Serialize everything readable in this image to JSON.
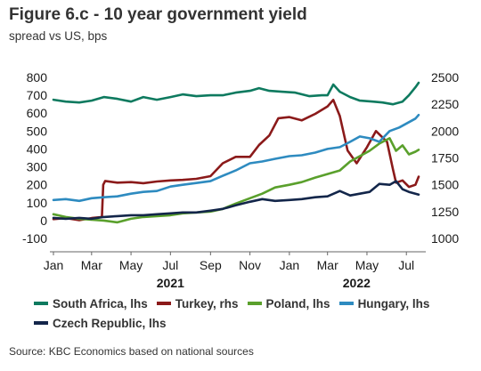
{
  "header": {
    "title": "Figure 6.c - 10 year government yield",
    "subtitle": "spread vs US, bps"
  },
  "source": "Source: KBC Economics based on national sources",
  "chart_data": {
    "type": "line",
    "title": "Figure 6.c - 10 year government yield",
    "subtitle": "spread vs US, bps",
    "x_range": [
      "2021-01-01",
      "2022-07-31"
    ],
    "x_ticks": [
      {
        "date": "2021-01-01",
        "label": "Jan"
      },
      {
        "date": "2021-03-01",
        "label": "Mar"
      },
      {
        "date": "2021-05-01",
        "label": "May"
      },
      {
        "date": "2021-07-01",
        "label": "Jul"
      },
      {
        "date": "2021-09-01",
        "label": "Sep"
      },
      {
        "date": "2021-11-01",
        "label": "Nov"
      },
      {
        "date": "2022-01-01",
        "label": "Jan"
      },
      {
        "date": "2022-03-01",
        "label": "Mar"
      },
      {
        "date": "2022-05-01",
        "label": "May"
      },
      {
        "date": "2022-07-01",
        "label": "Jul"
      }
    ],
    "year_labels": [
      {
        "date": "2021-07-01",
        "label": "2021"
      },
      {
        "date": "2022-04-15",
        "label": "2022"
      }
    ],
    "y_left": {
      "min": -100,
      "max": 800,
      "step": 100,
      "labels": [
        "-100",
        "0",
        "100",
        "200",
        "300",
        "400",
        "500",
        "600",
        "700",
        "800"
      ]
    },
    "y_right": {
      "min": 1000,
      "max": 2500,
      "step": 250,
      "labels": [
        "1000",
        "1250",
        "1500",
        "1750",
        "2000",
        "2250",
        "2500"
      ]
    },
    "grid": false,
    "legend_position": "bottom",
    "series": [
      {
        "name": "South Africa, lhs",
        "axis": "left",
        "color": "#0e7a5f",
        "points": [
          [
            "2021-01-01",
            675
          ],
          [
            "2021-01-20",
            665
          ],
          [
            "2021-02-10",
            660
          ],
          [
            "2021-03-01",
            670
          ],
          [
            "2021-03-20",
            690
          ],
          [
            "2021-04-10",
            680
          ],
          [
            "2021-05-01",
            665
          ],
          [
            "2021-05-20",
            690
          ],
          [
            "2021-06-10",
            675
          ],
          [
            "2021-07-01",
            690
          ],
          [
            "2021-07-20",
            705
          ],
          [
            "2021-08-10",
            695
          ],
          [
            "2021-09-01",
            700
          ],
          [
            "2021-09-20",
            700
          ],
          [
            "2021-10-10",
            715
          ],
          [
            "2021-11-01",
            725
          ],
          [
            "2021-11-15",
            740
          ],
          [
            "2021-12-01",
            725
          ],
          [
            "2021-12-20",
            720
          ],
          [
            "2022-01-10",
            715
          ],
          [
            "2022-02-01",
            695
          ],
          [
            "2022-02-20",
            700
          ],
          [
            "2022-03-01",
            700
          ],
          [
            "2022-03-10",
            760
          ],
          [
            "2022-03-20",
            720
          ],
          [
            "2022-04-05",
            690
          ],
          [
            "2022-04-20",
            670
          ],
          [
            "2022-05-10",
            665
          ],
          [
            "2022-05-25",
            660
          ],
          [
            "2022-06-10",
            650
          ],
          [
            "2022-06-25",
            665
          ],
          [
            "2022-07-05",
            700
          ],
          [
            "2022-07-15",
            745
          ],
          [
            "2022-07-20",
            770
          ]
        ]
      },
      {
        "name": "Turkey, rhs",
        "axis": "right",
        "color": "#8b1a1a",
        "points": [
          [
            "2021-01-01",
            1180
          ],
          [
            "2021-01-20",
            1190
          ],
          [
            "2021-02-10",
            1170
          ],
          [
            "2021-03-01",
            1190
          ],
          [
            "2021-03-17",
            1200
          ],
          [
            "2021-03-19",
            1500
          ],
          [
            "2021-03-22",
            1535
          ],
          [
            "2021-04-10",
            1520
          ],
          [
            "2021-05-01",
            1525
          ],
          [
            "2021-05-20",
            1515
          ],
          [
            "2021-06-10",
            1530
          ],
          [
            "2021-07-01",
            1540
          ],
          [
            "2021-07-20",
            1545
          ],
          [
            "2021-08-10",
            1555
          ],
          [
            "2021-09-01",
            1580
          ],
          [
            "2021-09-20",
            1700
          ],
          [
            "2021-10-10",
            1760
          ],
          [
            "2021-11-01",
            1760
          ],
          [
            "2021-11-15",
            1870
          ],
          [
            "2021-12-01",
            1960
          ],
          [
            "2021-12-15",
            2120
          ],
          [
            "2022-01-01",
            2130
          ],
          [
            "2022-01-20",
            2100
          ],
          [
            "2022-02-10",
            2160
          ],
          [
            "2022-03-01",
            2230
          ],
          [
            "2022-03-10",
            2290
          ],
          [
            "2022-03-20",
            2140
          ],
          [
            "2022-04-01",
            1820
          ],
          [
            "2022-04-15",
            1700
          ],
          [
            "2022-05-01",
            1850
          ],
          [
            "2022-05-15",
            2000
          ],
          [
            "2022-06-01",
            1900
          ],
          [
            "2022-06-10",
            1650
          ],
          [
            "2022-06-15",
            1520
          ],
          [
            "2022-06-25",
            1540
          ],
          [
            "2022-07-05",
            1480
          ],
          [
            "2022-07-15",
            1500
          ],
          [
            "2022-07-20",
            1575
          ]
        ]
      },
      {
        "name": "Poland, lhs",
        "axis": "left",
        "color": "#5aa02c",
        "points": [
          [
            "2021-01-01",
            35
          ],
          [
            "2021-01-20",
            20
          ],
          [
            "2021-02-10",
            10
          ],
          [
            "2021-03-01",
            5
          ],
          [
            "2021-03-20",
            0
          ],
          [
            "2021-04-10",
            -10
          ],
          [
            "2021-05-01",
            10
          ],
          [
            "2021-05-20",
            20
          ],
          [
            "2021-06-10",
            25
          ],
          [
            "2021-07-01",
            30
          ],
          [
            "2021-07-20",
            40
          ],
          [
            "2021-08-10",
            45
          ],
          [
            "2021-09-01",
            50
          ],
          [
            "2021-09-20",
            65
          ],
          [
            "2021-10-10",
            95
          ],
          [
            "2021-11-01",
            125
          ],
          [
            "2021-11-20",
            150
          ],
          [
            "2021-12-10",
            185
          ],
          [
            "2022-01-01",
            200
          ],
          [
            "2022-01-20",
            215
          ],
          [
            "2022-02-10",
            240
          ],
          [
            "2022-03-01",
            260
          ],
          [
            "2022-03-20",
            280
          ],
          [
            "2022-04-05",
            330
          ],
          [
            "2022-04-20",
            360
          ],
          [
            "2022-05-05",
            390
          ],
          [
            "2022-05-20",
            430
          ],
          [
            "2022-06-05",
            460
          ],
          [
            "2022-06-15",
            390
          ],
          [
            "2022-06-25",
            420
          ],
          [
            "2022-07-05",
            370
          ],
          [
            "2022-07-15",
            385
          ],
          [
            "2022-07-20",
            395
          ]
        ]
      },
      {
        "name": "Hungary, lhs",
        "axis": "left",
        "color": "#2e8bc0",
        "points": [
          [
            "2021-01-01",
            115
          ],
          [
            "2021-01-20",
            120
          ],
          [
            "2021-02-10",
            110
          ],
          [
            "2021-03-01",
            125
          ],
          [
            "2021-03-20",
            130
          ],
          [
            "2021-04-10",
            135
          ],
          [
            "2021-05-01",
            150
          ],
          [
            "2021-05-20",
            160
          ],
          [
            "2021-06-10",
            165
          ],
          [
            "2021-07-01",
            190
          ],
          [
            "2021-07-20",
            200
          ],
          [
            "2021-08-10",
            210
          ],
          [
            "2021-09-01",
            220
          ],
          [
            "2021-09-20",
            250
          ],
          [
            "2021-10-10",
            280
          ],
          [
            "2021-11-01",
            320
          ],
          [
            "2021-11-20",
            330
          ],
          [
            "2021-12-10",
            345
          ],
          [
            "2022-01-01",
            360
          ],
          [
            "2022-01-20",
            365
          ],
          [
            "2022-02-10",
            380
          ],
          [
            "2022-03-01",
            400
          ],
          [
            "2022-03-20",
            410
          ],
          [
            "2022-04-05",
            440
          ],
          [
            "2022-04-20",
            470
          ],
          [
            "2022-05-05",
            460
          ],
          [
            "2022-05-20",
            440
          ],
          [
            "2022-06-05",
            500
          ],
          [
            "2022-06-20",
            520
          ],
          [
            "2022-07-05",
            550
          ],
          [
            "2022-07-15",
            570
          ],
          [
            "2022-07-20",
            590
          ]
        ]
      },
      {
        "name": "Czech Republic, lhs",
        "axis": "left",
        "color": "#13264a",
        "points": [
          [
            "2021-01-01",
            15
          ],
          [
            "2021-01-20",
            10
          ],
          [
            "2021-02-10",
            15
          ],
          [
            "2021-03-01",
            10
          ],
          [
            "2021-03-20",
            20
          ],
          [
            "2021-04-10",
            25
          ],
          [
            "2021-05-01",
            30
          ],
          [
            "2021-05-20",
            30
          ],
          [
            "2021-06-10",
            35
          ],
          [
            "2021-07-01",
            40
          ],
          [
            "2021-07-20",
            45
          ],
          [
            "2021-08-10",
            45
          ],
          [
            "2021-09-01",
            55
          ],
          [
            "2021-09-20",
            65
          ],
          [
            "2021-10-10",
            85
          ],
          [
            "2021-11-01",
            105
          ],
          [
            "2021-11-20",
            120
          ],
          [
            "2021-12-10",
            110
          ],
          [
            "2022-01-01",
            115
          ],
          [
            "2022-01-20",
            120
          ],
          [
            "2022-02-10",
            130
          ],
          [
            "2022-03-01",
            135
          ],
          [
            "2022-03-20",
            165
          ],
          [
            "2022-04-05",
            140
          ],
          [
            "2022-04-20",
            150
          ],
          [
            "2022-05-05",
            160
          ],
          [
            "2022-05-20",
            205
          ],
          [
            "2022-06-05",
            200
          ],
          [
            "2022-06-15",
            220
          ],
          [
            "2022-06-25",
            175
          ],
          [
            "2022-07-05",
            160
          ],
          [
            "2022-07-15",
            150
          ],
          [
            "2022-07-20",
            145
          ]
        ]
      }
    ]
  }
}
